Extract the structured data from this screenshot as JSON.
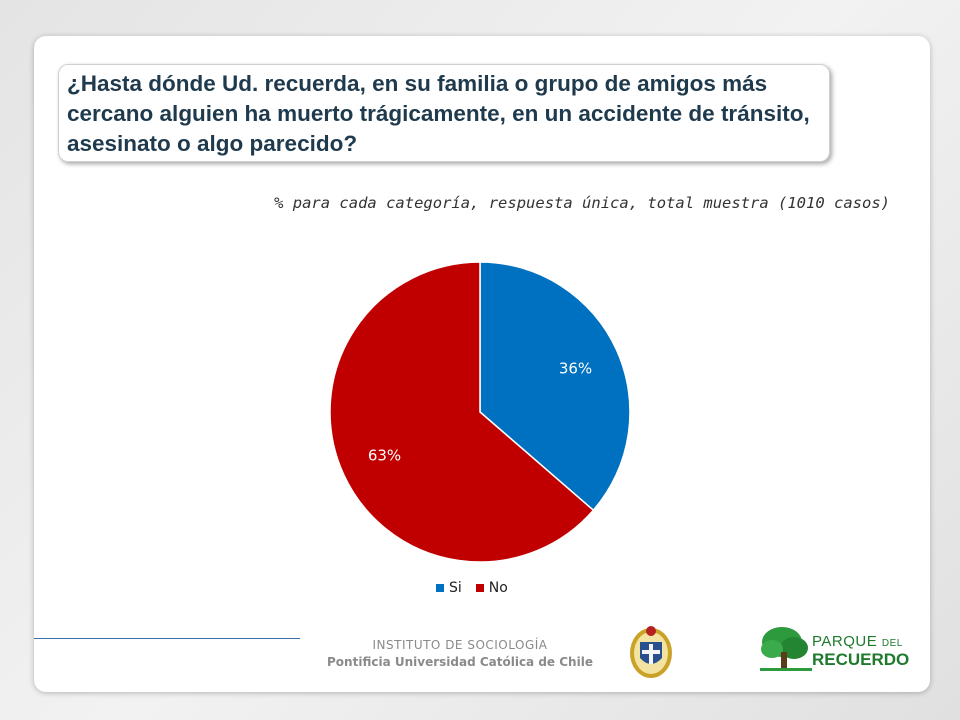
{
  "title": "¿Hasta dónde Ud. recuerda, en su familia o grupo de amigos más cercano alguien ha muerto trágicamente, en un accidente de tránsito, asesinato o algo parecido?",
  "subtitle": "% para cada categoría, respuesta única, total muestra (1010 casos)",
  "chart_data": {
    "type": "pie",
    "categories": [
      "Si",
      "No"
    ],
    "values": [
      36,
      63
    ],
    "labels": [
      "36%",
      "63%"
    ],
    "colors": [
      "#0070c0",
      "#c00000"
    ],
    "legend_position": "bottom"
  },
  "footer": {
    "institute": "INSTITUTO DE SOCIOLOGÍA",
    "university": "Pontificia Universidad Católica de Chile",
    "logo_line1": "PARQUE",
    "logo_line1_small": "DEL",
    "logo_line2": "RECUERDO"
  }
}
